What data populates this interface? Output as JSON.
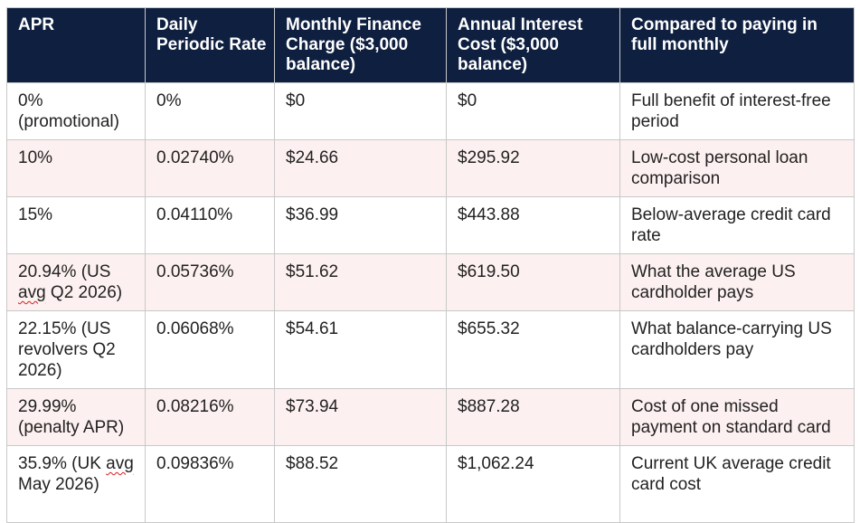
{
  "table": {
    "headers": [
      "APR",
      "Daily Periodic Rate",
      "Monthly Finance Charge ($3,000 balance)",
      "Annual Interest Cost ($3,000 balance)",
      "Compared to paying in full monthly"
    ],
    "rows": [
      {
        "apr_a": "0%",
        "apr_b": "(promotional)",
        "apr_c": "",
        "daily": "0%",
        "monthly": "$0",
        "annual": "$0",
        "compared": "Full benefit of interest-free period"
      },
      {
        "apr_a": "10%",
        "apr_b": "",
        "apr_c": "",
        "daily": "0.02740%",
        "monthly": "$24.66",
        "annual": "$295.92",
        "compared": "Low-cost personal loan comparison"
      },
      {
        "apr_a": "15%",
        "apr_b": "",
        "apr_c": "",
        "daily": "0.04110%",
        "monthly": "$36.99",
        "annual": "$443.88",
        "compared": "Below-average credit card rate"
      },
      {
        "apr_a": "20.94% (US ",
        "apr_b": "avg",
        "apr_c": " Q2 2026)",
        "daily": "0.05736%",
        "monthly": "$51.62",
        "annual": "$619.50",
        "compared": "What the average US cardholder pays"
      },
      {
        "apr_a": "22.15% (US revolvers Q2 2026)",
        "apr_b": "",
        "apr_c": "",
        "daily": "0.06068%",
        "monthly": "$54.61",
        "annual": "$655.32",
        "compared": "What balance-carrying US cardholders pay"
      },
      {
        "apr_a": "29.99% (penalty APR)",
        "apr_b": "",
        "apr_c": "",
        "daily": "0.08216%",
        "monthly": "$73.94",
        "annual": "$887.28",
        "compared": "Cost of one missed payment on standard card"
      },
      {
        "apr_a": "35.9% (UK ",
        "apr_b": "avg",
        "apr_c": " May 2026)",
        "daily": "0.09836%",
        "monthly": "$88.52",
        "annual": "$1,062.24",
        "compared": "Current UK average credit card cost"
      }
    ]
  }
}
